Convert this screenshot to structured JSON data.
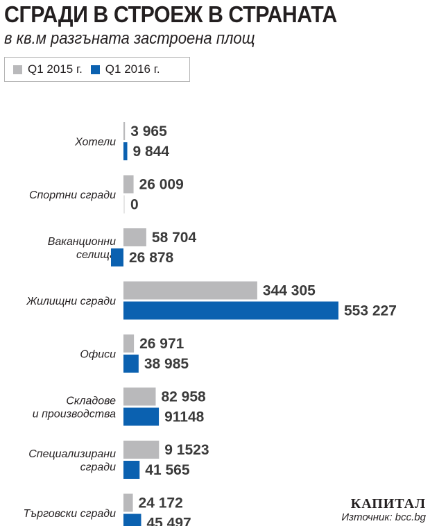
{
  "chart_data": {
    "type": "bar",
    "orientation": "horizontal",
    "title": "СГРАДИ В СТРОЕЖ В СТРАНАТА",
    "subtitle": "в кв.м разгъната застроена площ",
    "categories": [
      [
        "Хотели"
      ],
      [
        "Спортни сгради"
      ],
      [
        "Ваканционни",
        "селища"
      ],
      [
        "Жилищни сгради"
      ],
      [
        "Офиси"
      ],
      [
        "Складове",
        "и производства"
      ],
      [
        "Специализирани",
        "сгради"
      ],
      [
        "Търговски сгради"
      ]
    ],
    "series": [
      {
        "name": "Q1 2015 г.",
        "color": "#b9b9bb",
        "values": [
          3965,
          26009,
          58704,
          344305,
          26971,
          82958,
          91523,
          24172
        ],
        "labels": [
          "3 965",
          "26 009",
          "58 704",
          "344 305",
          "26 971",
          "82 958",
          "9 1523",
          "24 172"
        ]
      },
      {
        "name": "Q1 2016 г.",
        "color": "#0b61b0",
        "values": [
          9844,
          0,
          26878,
          553227,
          38985,
          91148,
          41565,
          45497
        ],
        "labels": [
          "9 844",
          "0",
          "26 878",
          "553 227",
          "38 985",
          "91148",
          "41 565",
          "45 497"
        ]
      }
    ],
    "legend": "top-left",
    "grid": false
  },
  "footer": {
    "logo": "КАПИТАЛ",
    "source": "Източник: bcc.bg"
  }
}
